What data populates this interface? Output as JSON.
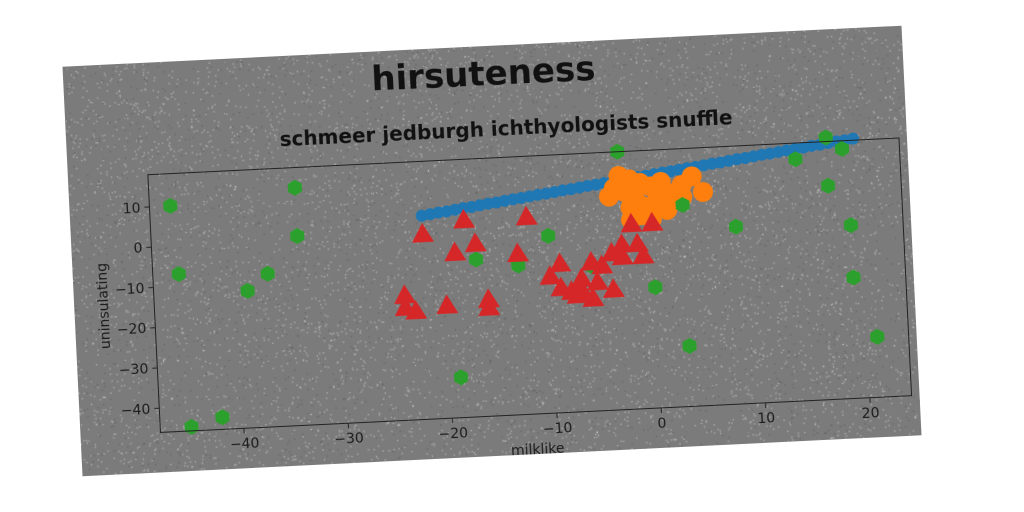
{
  "suptitle": "hirsuteness",
  "chart_data": {
    "type": "scatter",
    "title": "schmeer jedburgh ichthyologists snuffle",
    "xlabel": "milklike",
    "ylabel": "uninsulating",
    "xlim": [
      -48,
      24
    ],
    "ylim": [
      -46,
      18
    ],
    "xticks": [
      -40,
      -30,
      -20,
      -10,
      0,
      10,
      20
    ],
    "yticks": [
      -40,
      -30,
      -20,
      -10,
      0,
      10
    ],
    "grid": false,
    "series": [
      {
        "color": "#1f77b4",
        "marker": "circle",
        "x": [
          -22,
          -21.2,
          -20.4,
          -19.6,
          -18.8,
          -18,
          -17.2,
          -16.4,
          -15.6,
          -14.8,
          -14,
          -13.2,
          -12.4,
          -11.6,
          -10.8,
          -10,
          -9.2,
          -8.4,
          -7.6,
          -6.8,
          -6,
          -5.2,
          -4.4,
          -3.6,
          -2.8,
          -2,
          -1.2,
          -0.4,
          0.4,
          1.2,
          2,
          2.8,
          3.6,
          4.4,
          5.2,
          6,
          6.8,
          7.6,
          8.4,
          9.2,
          10,
          10.8,
          11.6,
          12.4,
          13.2,
          14,
          14.8,
          15.6,
          16.4,
          17.2,
          18,
          18.8,
          19.6
        ],
        "y": [
          4.5,
          4.8,
          5.1,
          5.3,
          5.6,
          5.9,
          6.1,
          6.4,
          6.7,
          6.9,
          7.2,
          7.5,
          7.7,
          8,
          8.3,
          8.5,
          8.8,
          9.1,
          9.3,
          9.6,
          9.9,
          10.1,
          10.4,
          10.7,
          10.9,
          11.2,
          11.5,
          11.7,
          12,
          12.3,
          12.5,
          12.8,
          13.1,
          13.3,
          13.6,
          13.9,
          14.1,
          14.4,
          14.7,
          14.9,
          15.2,
          15.5,
          15.7,
          16,
          16.3,
          16.5,
          16.8,
          17.1,
          17.3,
          17.6,
          17.9,
          18.1,
          18.4
        ]
      },
      {
        "color": "#ff7f0e",
        "marker": "circle",
        "x": [
          -3,
          -2,
          -1,
          0,
          1,
          2,
          3,
          -2.5,
          -1.5,
          -0.5,
          0.5,
          1.5,
          -3.5,
          -1,
          0,
          2,
          -2,
          -1,
          1,
          4,
          5,
          -4,
          -2,
          3
        ],
        "y": [
          12,
          11,
          10,
          9,
          8,
          7,
          6,
          8,
          6,
          4,
          5,
          3,
          9,
          2,
          1,
          6,
          4,
          3,
          10,
          11,
          7,
          7,
          1,
          9
        ]
      },
      {
        "color": "#2ca02c",
        "marker": "hexagon",
        "x": [
          -46,
          -45.5,
          -45,
          -42,
          -39,
          -37,
          -34,
          -34,
          -19,
          -17,
          -13,
          -10,
          -7.5,
          -6,
          -3,
          0,
          3,
          3,
          8,
          14,
          17,
          17,
          18.5,
          19,
          19,
          21
        ],
        "y": [
          10,
          -7,
          -45,
          -43,
          -12,
          -8,
          13,
          1,
          -36,
          -7,
          -9,
          -2,
          -16,
          -10,
          18,
          -16,
          -31,
          4,
          -2,
          14,
          7,
          19,
          16,
          -3,
          -16,
          -31
        ]
      },
      {
        "color": "#d62728",
        "marker": "triangle",
        "x": [
          -24,
          -24,
          -23,
          -22,
          -20,
          -19,
          -18,
          -17,
          -16,
          -13,
          -12,
          -10,
          -9,
          -8,
          -7,
          -6,
          -5,
          -4,
          -4,
          -3,
          -2,
          -1.5,
          -1,
          0,
          -7,
          -5.5,
          -7.5,
          -9,
          -6,
          -3,
          -16
        ],
        "y": [
          -15,
          -18,
          -19,
          0,
          -18,
          -5,
          3,
          -3,
          -17,
          -6,
          3,
          -12,
          -9,
          -16,
          -13,
          -18,
          -10,
          -7,
          -16,
          -5,
          0,
          -5,
          -8,
          0,
          -16,
          -14,
          -17,
          -15,
          -9,
          -8,
          -19
        ]
      }
    ]
  }
}
